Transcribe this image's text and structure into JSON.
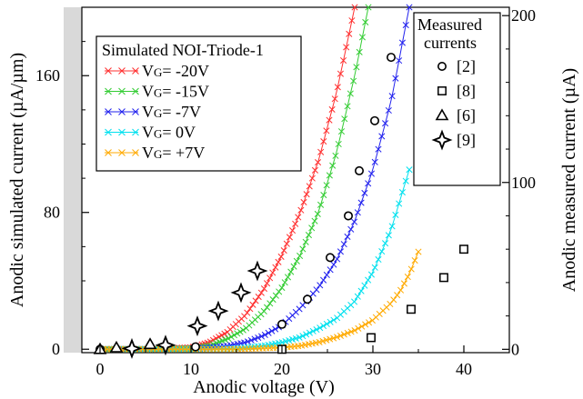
{
  "chart_data": {
    "type": "scatter",
    "xlabel": "Anodic  voltage (V)",
    "ylabel_left": "Anodic simulated current (µA/µm)",
    "ylabel_right": "Anodic measured  current (µA)",
    "xlim": [
      -2,
      45
    ],
    "ylim_left": [
      -2,
      200
    ],
    "ylim_right": [
      -2,
      205
    ],
    "x_ticks": [
      0,
      10,
      20,
      30,
      40
    ],
    "y_ticks_left": [
      0,
      80,
      160
    ],
    "y_ticks_right": [
      0,
      100,
      200
    ],
    "legend_left": {
      "title": "Simulated NOI-Triode-1",
      "placement": "top-left",
      "entries": [
        {
          "vg": "V",
          "sub": "G",
          "val": "= -20V"
        },
        {
          "vg": "V",
          "sub": "G",
          "val": "= -15V"
        },
        {
          "vg": "V",
          "sub": "G",
          "val": "= -7V"
        },
        {
          "vg": "V",
          "sub": "G",
          "val": "=  0V"
        },
        {
          "vg": "V",
          "sub": "G",
          "val": "= +7V"
        }
      ]
    },
    "legend_right": {
      "title_line1": "Measured",
      "title_line2": "currents",
      "placement": "top-right",
      "entries": [
        "[2]",
        "[8]",
        "[6]",
        "[9]"
      ]
    },
    "simulated_series": [
      {
        "name": "VG= -20V",
        "color": "#ff3030",
        "axis": "left",
        "x": [
          0,
          5,
          10,
          12,
          14,
          16,
          18,
          20,
          22,
          24,
          26,
          27,
          28
        ],
        "y": [
          0,
          0,
          1,
          4,
          10,
          20,
          35,
          55,
          80,
          110,
          150,
          175,
          200
        ]
      },
      {
        "name": "VG= -15V",
        "color": "#33cc33",
        "axis": "left",
        "x": [
          0,
          5,
          10,
          12,
          14,
          16,
          18,
          20,
          22,
          24,
          26,
          28,
          29.5
        ],
        "y": [
          0,
          0,
          0.5,
          2,
          6,
          12,
          22,
          36,
          55,
          80,
          115,
          160,
          200
        ]
      },
      {
        "name": "VG= -7V",
        "color": "#2222ee",
        "axis": "left",
        "x": [
          0,
          5,
          10,
          14,
          16,
          18,
          20,
          22,
          24,
          26,
          28,
          30,
          32,
          34
        ],
        "y": [
          0,
          0,
          0,
          2,
          4,
          8,
          14,
          24,
          36,
          52,
          75,
          105,
          145,
          200
        ]
      },
      {
        "name": "VG= 0V",
        "color": "#00e0ee",
        "axis": "left",
        "x": [
          0,
          10,
          15,
          18,
          20,
          22,
          24,
          26,
          28,
          30,
          32,
          34
        ],
        "y": [
          0,
          0,
          0.5,
          2,
          4,
          7,
          12,
          18,
          28,
          45,
          70,
          105
        ]
      },
      {
        "name": "VG= +7V",
        "color": "#ffaa00",
        "axis": "left",
        "x": [
          0,
          10,
          15,
          20,
          22,
          24,
          26,
          28,
          30,
          32,
          33,
          34,
          35
        ],
        "y": [
          0,
          0,
          0,
          1,
          2,
          4,
          7,
          11,
          17,
          27,
          34,
          44,
          57
        ]
      }
    ],
    "measured_series": [
      {
        "ref": "[2]",
        "marker": "circle",
        "axis": "right",
        "x": [
          0,
          10.5,
          20,
          22.8,
          25.3,
          27.3,
          28.5,
          30.2,
          32
        ],
        "y": [
          0,
          1.5,
          15,
          30,
          55,
          80,
          107,
          137,
          175
        ]
      },
      {
        "ref": "[8]",
        "marker": "square",
        "axis": "right",
        "x": [
          20,
          29.8,
          34.2,
          37.8,
          40
        ],
        "y": [
          0,
          7,
          24,
          43,
          60
        ]
      },
      {
        "ref": "[6]",
        "marker": "triangle",
        "axis": "right",
        "x": [
          0,
          1.8,
          5.5
        ],
        "y": [
          0,
          1,
          3
        ]
      },
      {
        "ref": "[9]",
        "marker": "star4",
        "axis": "right",
        "x": [
          3.5,
          7.2,
          10.7,
          13,
          15.5,
          17.3
        ],
        "y": [
          0.5,
          2.5,
          14,
          23,
          34,
          47
        ]
      }
    ]
  }
}
